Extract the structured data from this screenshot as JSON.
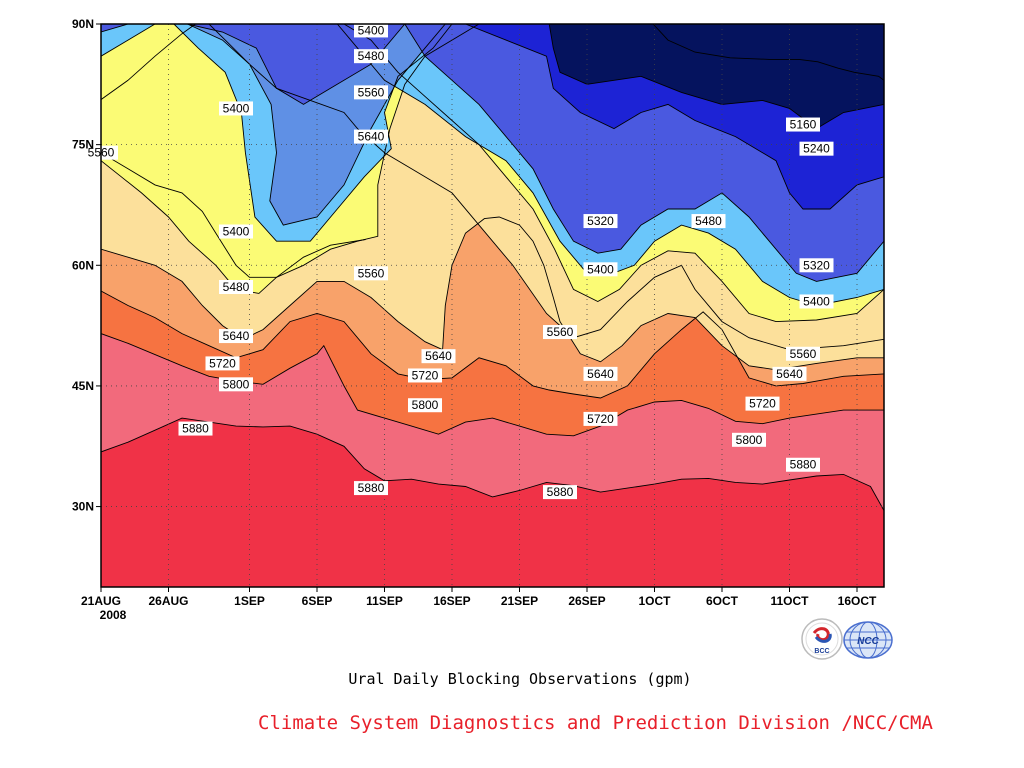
{
  "chart_data": {
    "type": "heatmap",
    "title": "Ural Daily Blocking Observations (gpm)",
    "xlabel": "",
    "ylabel": "",
    "x_tick_labels": [
      "21AUG",
      "26AUG",
      "1SEP",
      "6SEP",
      "11SEP",
      "16SEP",
      "21SEP",
      "26SEP",
      "1OCT",
      "6OCT",
      "11OCT",
      "16OCT"
    ],
    "x_year_label": "2008",
    "y_tick_labels": [
      "30N",
      "45N",
      "60N",
      "75N",
      "90N"
    ],
    "x_range": [
      "2008-08-21",
      "2008-10-18"
    ],
    "y_range": [
      20,
      90
    ],
    "grid": "dotted",
    "contour_levels": [
      5160,
      5240,
      5320,
      5400,
      5480,
      5560,
      5640,
      5720,
      5800,
      5880
    ],
    "level_colors": [
      "#05135e",
      "#1d23d5",
      "#4a59e0",
      "#5f90e5",
      "#6ac6fa",
      "#fbfb75",
      "#fce09b",
      "#f8a26a",
      "#f67341",
      "#f26a7c",
      "#f03247"
    ],
    "contour_labels": [
      {
        "value": "5400",
        "date": "2008-09-10",
        "lat": 89.2
      },
      {
        "value": "5480",
        "date": "2008-09-10",
        "lat": 86
      },
      {
        "value": "5560",
        "date": "2008-09-10",
        "lat": 81.5
      },
      {
        "value": "5400",
        "date": "2008-08-31",
        "lat": 79.5
      },
      {
        "value": "5640",
        "date": "2008-09-10",
        "lat": 76
      },
      {
        "value": "5560",
        "date": "2008-08-21",
        "lat": 74
      },
      {
        "value": "5160",
        "date": "2008-10-12",
        "lat": 77.5
      },
      {
        "value": "5240",
        "date": "2008-10-13",
        "lat": 74.5
      },
      {
        "value": "5320",
        "date": "2008-09-27",
        "lat": 65.5
      },
      {
        "value": "5480",
        "date": "2008-10-05",
        "lat": 65.5
      },
      {
        "value": "5400",
        "date": "2008-08-31",
        "lat": 64.2
      },
      {
        "value": "5400",
        "date": "2008-09-27",
        "lat": 59.5
      },
      {
        "value": "5320",
        "date": "2008-10-13",
        "lat": 60
      },
      {
        "value": "5560",
        "date": "2008-09-10",
        "lat": 59
      },
      {
        "value": "5480",
        "date": "2008-08-31",
        "lat": 57.3
      },
      {
        "value": "5400",
        "date": "2008-10-13",
        "lat": 55.5
      },
      {
        "value": "5560",
        "date": "2008-09-24",
        "lat": 51.7
      },
      {
        "value": "5640",
        "date": "2008-08-31",
        "lat": 51.2
      },
      {
        "value": "5560",
        "date": "2008-10-12",
        "lat": 49
      },
      {
        "value": "5640",
        "date": "2008-09-15",
        "lat": 48.7
      },
      {
        "value": "5720",
        "date": "2008-08-30",
        "lat": 47.8
      },
      {
        "value": "5640",
        "date": "2008-09-27",
        "lat": 46.5
      },
      {
        "value": "5640",
        "date": "2008-10-11",
        "lat": 46.5
      },
      {
        "value": "5720",
        "date": "2008-09-14",
        "lat": 46.3
      },
      {
        "value": "5800",
        "date": "2008-08-31",
        "lat": 45.2
      },
      {
        "value": "5720",
        "date": "2008-10-09",
        "lat": 42.8
      },
      {
        "value": "5800",
        "date": "2008-09-14",
        "lat": 42.6
      },
      {
        "value": "5720",
        "date": "2008-09-27",
        "lat": 40.9
      },
      {
        "value": "5880",
        "date": "2008-08-28",
        "lat": 39.7
      },
      {
        "value": "5800",
        "date": "2008-10-08",
        "lat": 38.3
      },
      {
        "value": "5880",
        "date": "2008-10-12",
        "lat": 35.2
      },
      {
        "value": "5880",
        "date": "2008-09-10",
        "lat": 32.3
      },
      {
        "value": "5880",
        "date": "2008-09-24",
        "lat": 31.8
      }
    ]
  },
  "logos": {
    "left": "BCC",
    "right": "NCC"
  },
  "footer": {
    "credit": "Climate System Diagnostics and Prediction Division /NCC/CMA",
    "credit_color": "#e8202a"
  }
}
